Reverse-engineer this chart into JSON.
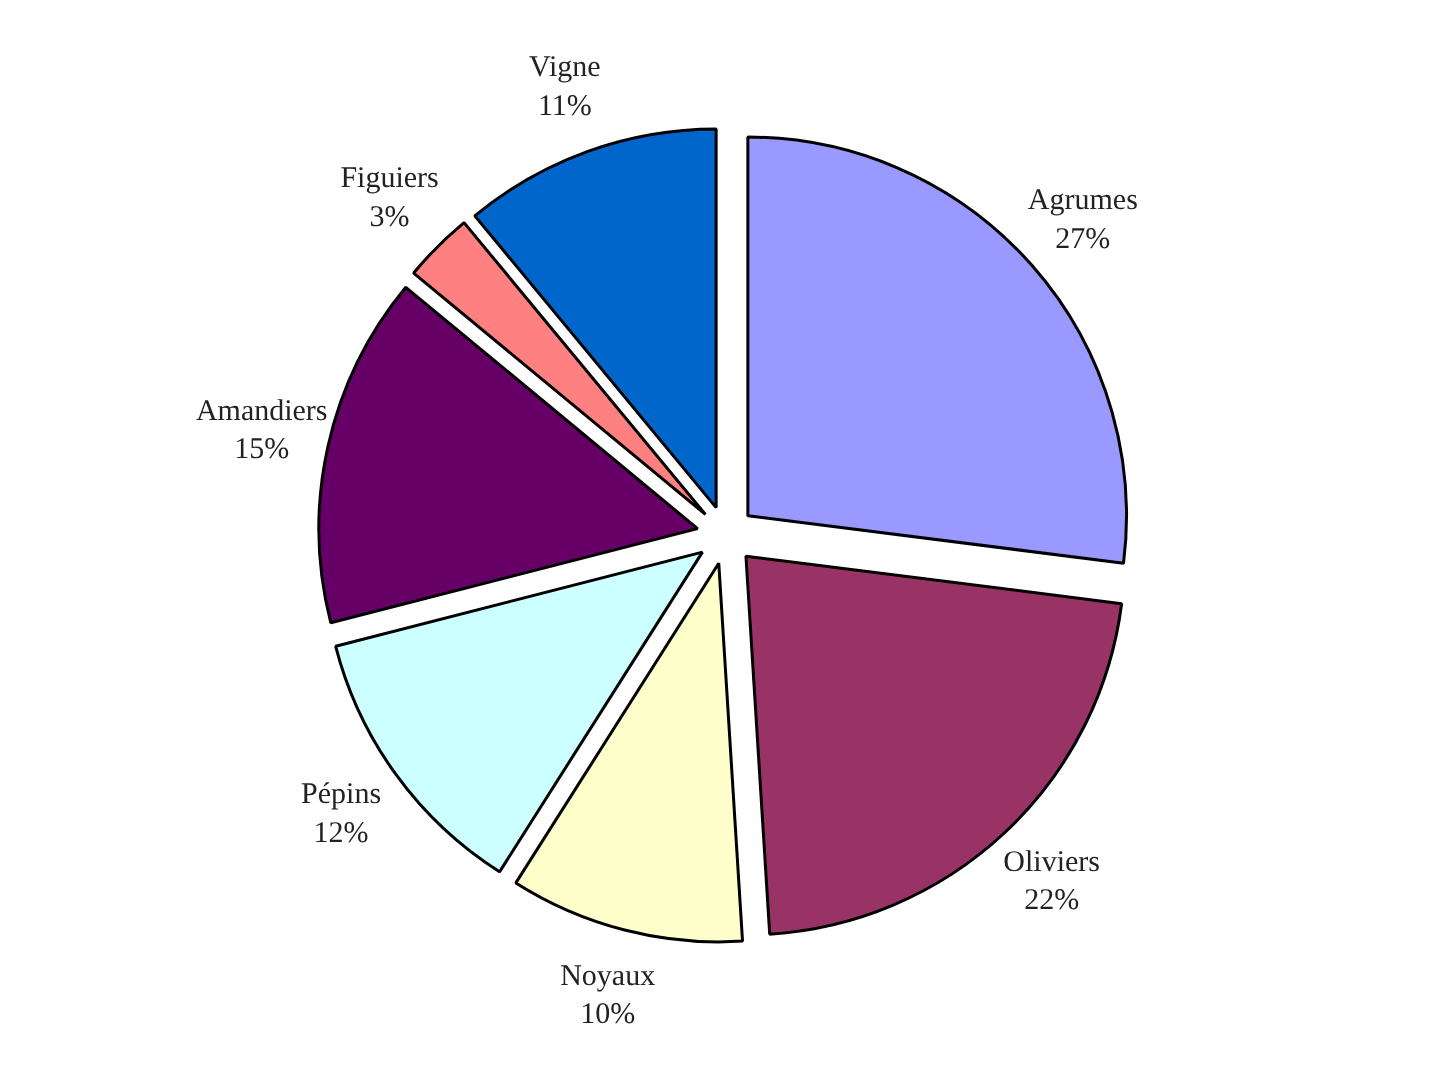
{
  "chart_data": {
    "type": "pie",
    "categories": [
      "Agrumes",
      "Oliviers",
      "Noyaux",
      "Pépins",
      "Amandiers",
      "Figuiers",
      "Vigne"
    ],
    "values": [
      27,
      22,
      10,
      12,
      15,
      3,
      11
    ],
    "value_labels": [
      "27%",
      "22%",
      "10%",
      "12%",
      "15%",
      "3%",
      "11%"
    ],
    "colors": [
      "#9999ff",
      "#993366",
      "#ffffcc",
      "#ccffff",
      "#660066",
      "#ff8080",
      "#0066cc"
    ]
  }
}
